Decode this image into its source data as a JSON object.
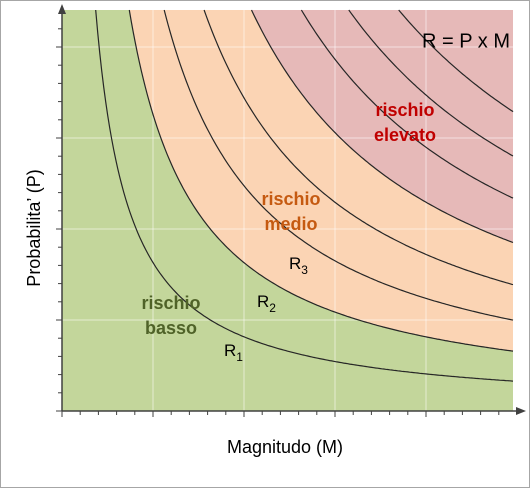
{
  "formula": "R = P x M",
  "zones": {
    "high": [
      "rischio",
      "elevato"
    ],
    "medium": [
      "rischio",
      "medio"
    ],
    "low": [
      "rischio",
      "basso"
    ]
  },
  "curve_labels": [
    {
      "base": "R",
      "sub": "1"
    },
    {
      "base": "R",
      "sub": "2"
    },
    {
      "base": "R",
      "sub": "3"
    }
  ],
  "x_axis_title": "Magnitudo (M)",
  "y_axis_title": "Probabilita’ (P)"
}
